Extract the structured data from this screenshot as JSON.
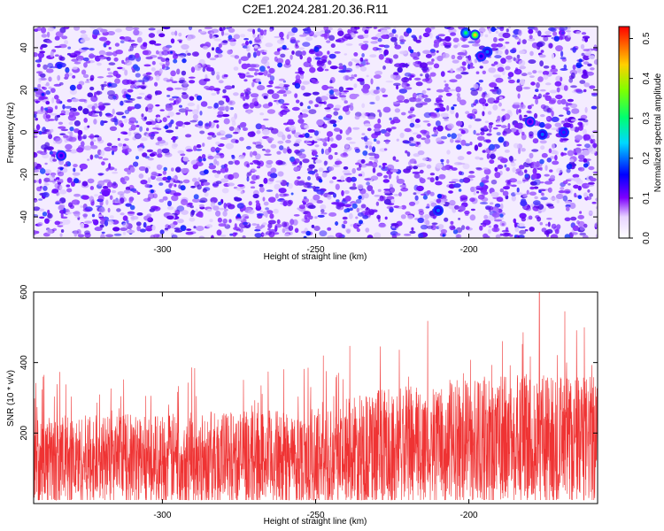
{
  "title": "C2E1.2024.281.20.36.R11",
  "colors": {
    "snr_line": "#ef3333",
    "colormap": [
      "#ffffff",
      "#7d00ff",
      "#0000ff",
      "#00d8ff",
      "#00ff40",
      "#ffd000",
      "#ff0000"
    ]
  },
  "chart_data": [
    {
      "type": "heatmap",
      "title": "C2E1.2024.281.20.36.R11",
      "xlabel": "Height of straight line (km)",
      "ylabel": "Frequency (Hz)",
      "xlim": [
        -342,
        -158
      ],
      "ylim": [
        -50,
        50
      ],
      "xticks": [
        -300,
        -250,
        -200
      ],
      "yticks": [
        -40,
        -20,
        0,
        20,
        40
      ],
      "colorbar": {
        "label": "Normalized spectral amplitude",
        "range": [
          0.0,
          0.53
        ],
        "ticks": [
          "0.0",
          "0.1",
          "0.2",
          "0.3",
          "0.4",
          "0.5"
        ]
      },
      "peaks": [
        {
          "x": -201,
          "y": 47,
          "value": 0.3
        },
        {
          "x": -198,
          "y": 46,
          "value": 0.45
        },
        {
          "x": -194,
          "y": 38,
          "value": 0.2
        },
        {
          "x": -176,
          "y": -1,
          "value": 0.2
        },
        {
          "x": -169,
          "y": 0,
          "value": 0.18
        },
        {
          "x": -210,
          "y": -37,
          "value": 0.2
        },
        {
          "x": -333,
          "y": -11,
          "value": 0.15
        },
        {
          "x": -196,
          "y": 36,
          "value": 0.16
        },
        {
          "x": -180,
          "y": 5,
          "value": 0.14
        }
      ]
    },
    {
      "type": "line",
      "xlabel": "Height of straight line (km)",
      "ylabel": "SNR (10 * v/v)",
      "xlim": [
        -342,
        -158
      ],
      "ylim": [
        0,
        600
      ],
      "xticks": [
        -300,
        -250,
        -200
      ],
      "yticks": [
        200,
        400,
        600
      ],
      "trend": {
        "x": [
          -342,
          -300,
          -250,
          -230,
          -200,
          -175,
          -158
        ],
        "baseline": [
          120,
          125,
          130,
          155,
          175,
          180,
          175
        ],
        "spread": [
          150,
          155,
          165,
          200,
          215,
          225,
          220
        ]
      },
      "max_peak": {
        "x": -177,
        "y": 600
      }
    }
  ]
}
